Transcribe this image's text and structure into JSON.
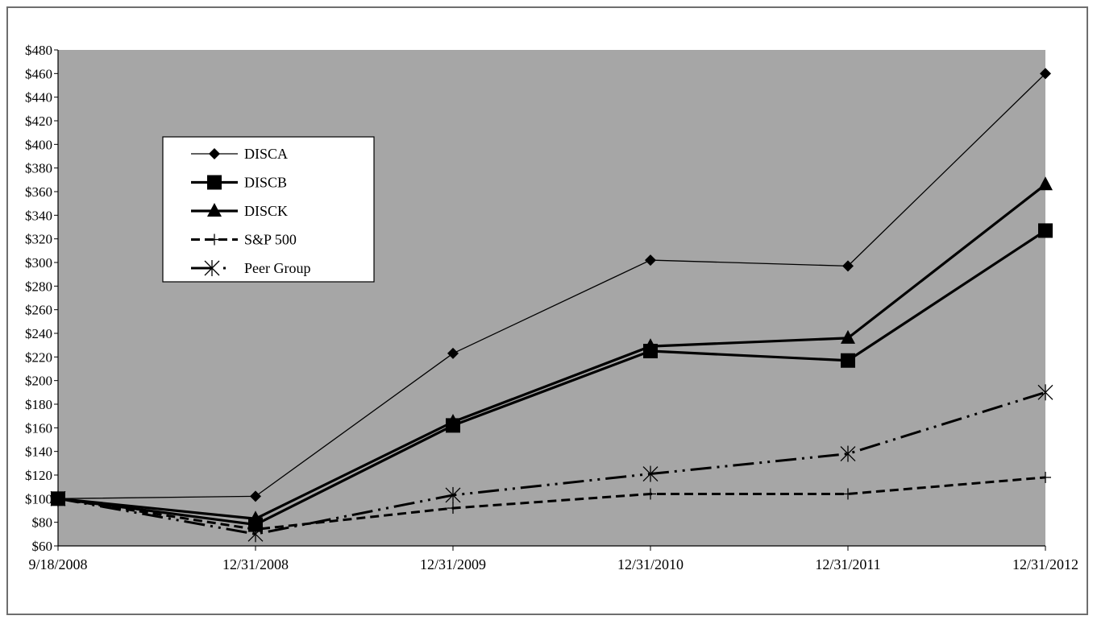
{
  "chart_data": {
    "type": "line",
    "x": [
      "9/18/2008",
      "12/31/2008",
      "12/31/2009",
      "12/31/2010",
      "12/31/2011",
      "12/31/2012"
    ],
    "y_ticks": [
      "$60",
      "$80",
      "$100",
      "$120",
      "$140",
      "$160",
      "$180",
      "$200",
      "$220",
      "$240",
      "$260",
      "$280",
      "$300",
      "$320",
      "$340",
      "$360",
      "$380",
      "$400",
      "$420",
      "$440",
      "$460",
      "$480"
    ],
    "ylim": [
      60,
      480
    ],
    "grid": false,
    "legend_position": "top-left",
    "plot_background": "#a6a6a6",
    "series": [
      {
        "name": "DISCA",
        "values": [
          100,
          102,
          223,
          302,
          297,
          460
        ],
        "marker": "diamond",
        "line_style": "thin-solid"
      },
      {
        "name": "DISCB",
        "values": [
          100,
          78,
          162,
          225,
          217,
          327
        ],
        "marker": "square",
        "line_style": "thick-solid"
      },
      {
        "name": "DISCK",
        "values": [
          100,
          83,
          165,
          229,
          236,
          366
        ],
        "marker": "triangle",
        "line_style": "thick-solid"
      },
      {
        "name": "S&P 500",
        "values": [
          100,
          74,
          92,
          104,
          104,
          118
        ],
        "marker": "plus",
        "line_style": "dashed"
      },
      {
        "name": "Peer Group",
        "values": [
          100,
          70,
          103,
          121,
          138,
          190
        ],
        "marker": "asterisk",
        "line_style": "dash-dot-dot"
      }
    ]
  }
}
